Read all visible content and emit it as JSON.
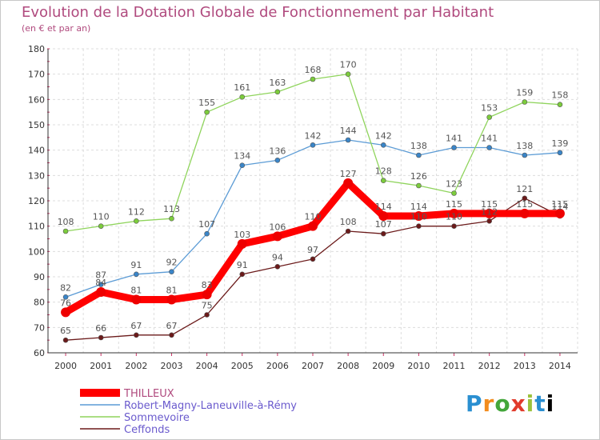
{
  "title": "Evolution de la Dotation Globale de Fonctionnement par Habitant",
  "subtitle": "(en € et par an)",
  "logo_text": "Proxiti",
  "chart_data": {
    "type": "line",
    "title": "Evolution de la Dotation Globale de Fonctionnement par Habitant",
    "subtitle": "(en € et par an)",
    "xlabel": "",
    "ylabel": "",
    "x": [
      2000,
      2001,
      2002,
      2003,
      2004,
      2005,
      2006,
      2007,
      2008,
      2009,
      2010,
      2011,
      2012,
      2013,
      2014
    ],
    "ylim": [
      60,
      180
    ],
    "yticks": [
      60,
      70,
      80,
      90,
      100,
      110,
      120,
      130,
      140,
      150,
      160,
      170,
      180
    ],
    "grid": true,
    "legend_position": "bottom-left",
    "series": [
      {
        "name": "Ceffonds",
        "color": "#6b1a1a",
        "marker": "#6b1a1a",
        "values": [
          65,
          66,
          67,
          67,
          75,
          91,
          94,
          97,
          108,
          107,
          110,
          110,
          112,
          121,
          114
        ]
      },
      {
        "name": "Robert-Magny-Laneuville-à-Rémy",
        "color": "#5b9bd5",
        "marker": "#3a85c8",
        "values": [
          82,
          87,
          91,
          92,
          107,
          134,
          136,
          142,
          144,
          142,
          138,
          141,
          141,
          138,
          139
        ]
      },
      {
        "name": "Sommevoire",
        "color": "#8fd45c",
        "marker": "#7ccc3c",
        "values": [
          108,
          110,
          112,
          113,
          155,
          161,
          163,
          168,
          170,
          128,
          126,
          123,
          153,
          159,
          158
        ]
      },
      {
        "name": "THILLEUX",
        "color": "#ff0000",
        "marker": "#ee0000",
        "values": [
          76,
          84,
          81,
          81,
          83,
          103,
          106,
          110,
          127,
          114,
          114,
          115,
          115,
          115,
          115
        ]
      }
    ],
    "legend_order": [
      "THILLEUX",
      "Robert-Magny-Laneuville-à-Rémy",
      "Sommevoire",
      "Ceffonds"
    ]
  }
}
